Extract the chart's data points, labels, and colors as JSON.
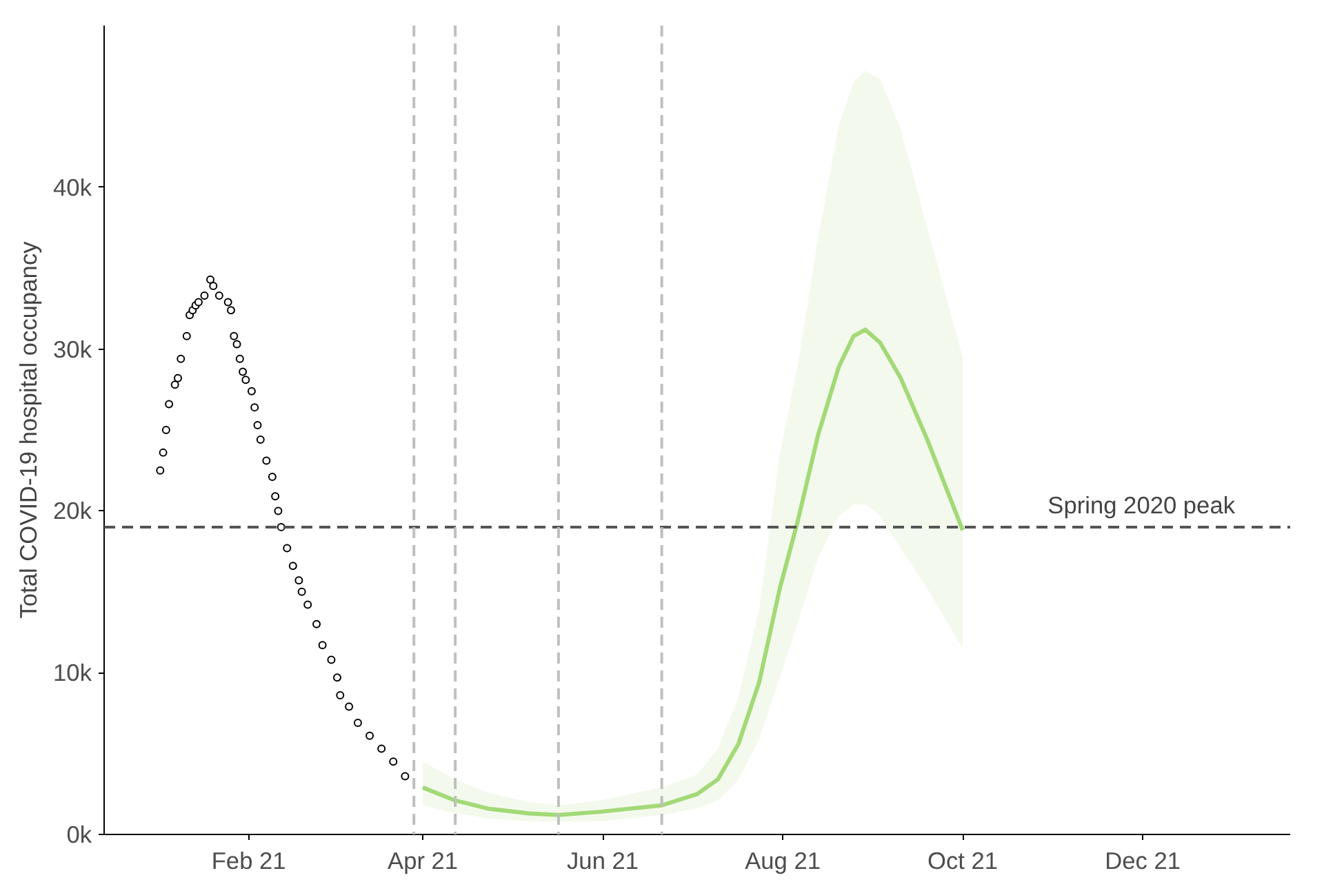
{
  "chart_data": {
    "type": "line",
    "ylabel": "Total COVID-19 hospital occupancy",
    "xlim": [
      "2020-12-14",
      "2022-01-20"
    ],
    "ylim": [
      0,
      50000
    ],
    "xticks": [
      {
        "value": "2021-02-01",
        "label": "Feb 21"
      },
      {
        "value": "2021-04-01",
        "label": "Apr 21"
      },
      {
        "value": "2021-06-01",
        "label": "Jun 21"
      },
      {
        "value": "2021-08-01",
        "label": "Aug 21"
      },
      {
        "value": "2021-10-01",
        "label": "Oct 21"
      },
      {
        "value": "2021-12-01",
        "label": "Dec 21"
      }
    ],
    "yticks": [
      {
        "value": 0,
        "label": "0k"
      },
      {
        "value": 10000,
        "label": "10k"
      },
      {
        "value": 20000,
        "label": "20k"
      },
      {
        "value": 30000,
        "label": "30k"
      },
      {
        "value": 40000,
        "label": "40k"
      }
    ],
    "grid": false,
    "series": [
      {
        "type": "scatter",
        "marker": "circle",
        "color": "#000000",
        "x": [
          "2021-01-02",
          "2021-01-03",
          "2021-01-04",
          "2021-01-05",
          "2021-01-07",
          "2021-01-08",
          "2021-01-09",
          "2021-01-11",
          "2021-01-12",
          "2021-01-13",
          "2021-01-14",
          "2021-01-15",
          "2021-01-17",
          "2021-01-19",
          "2021-01-20",
          "2021-01-22",
          "2021-01-25",
          "2021-01-26",
          "2021-01-27",
          "2021-01-28",
          "2021-01-29",
          "2021-01-30",
          "2021-01-31",
          "2021-02-02",
          "2021-02-03",
          "2021-02-04",
          "2021-02-05",
          "2021-02-07",
          "2021-02-09",
          "2021-02-10",
          "2021-02-11",
          "2021-02-12",
          "2021-02-14",
          "2021-02-16",
          "2021-02-18",
          "2021-02-19",
          "2021-02-21",
          "2021-02-24",
          "2021-02-26",
          "2021-03-01",
          "2021-03-03",
          "2021-03-04",
          "2021-03-07",
          "2021-03-10",
          "2021-03-14",
          "2021-03-18",
          "2021-03-22",
          "2021-03-26"
        ],
        "values": [
          22500,
          23600,
          25000,
          26600,
          27800,
          28200,
          29400,
          30800,
          32100,
          32400,
          32700,
          32900,
          33300,
          34300,
          33900,
          33300,
          32900,
          32400,
          30800,
          30300,
          29400,
          28600,
          28100,
          27400,
          26400,
          25300,
          24400,
          23100,
          22100,
          20900,
          20000,
          19000,
          17700,
          16600,
          15700,
          15000,
          14200,
          13000,
          11700,
          10800,
          9700,
          8600,
          7900,
          6900,
          6100,
          5300,
          4500,
          3600
        ]
      },
      {
        "color": "#a3d977",
        "x": [
          "2021-04-01",
          "2021-04-12",
          "2021-04-23",
          "2021-05-07",
          "2021-05-17",
          "2021-05-31",
          "2021-06-21",
          "2021-07-03",
          "2021-07-10",
          "2021-07-17",
          "2021-07-24",
          "2021-07-31",
          "2021-08-06",
          "2021-08-13",
          "2021-08-20",
          "2021-08-25",
          "2021-08-29",
          "2021-09-03",
          "2021-09-10",
          "2021-09-19",
          "2021-10-01"
        ],
        "values": [
          2900,
          2100,
          1600,
          1300,
          1200,
          1400,
          1800,
          2500,
          3400,
          5600,
          9400,
          15200,
          19300,
          24700,
          28900,
          30800,
          31200,
          30400,
          28200,
          24400,
          18800
        ],
        "lower": [
          1800,
          1300,
          1000,
          800,
          800,
          800,
          1200,
          1600,
          2100,
          3400,
          5900,
          9700,
          13000,
          17100,
          19700,
          20400,
          20400,
          19700,
          17700,
          15200,
          11500
        ],
        "upper": [
          4500,
          3400,
          2600,
          2000,
          1800,
          2100,
          2900,
          3700,
          5300,
          8500,
          13900,
          23500,
          28900,
          36900,
          43800,
          46500,
          47200,
          46700,
          43600,
          37500,
          29500
        ]
      }
    ],
    "ref_lines": [
      {
        "axis": "y",
        "value": 19000,
        "label": "Spring 2020 peak",
        "color": "#555555",
        "line_style": "dashed"
      },
      {
        "axis": "x",
        "value": "2021-03-29",
        "color": "#bfbfbf",
        "line_style": "dashed"
      },
      {
        "axis": "x",
        "value": "2021-04-12",
        "color": "#bfbfbf",
        "line_style": "dashed"
      },
      {
        "axis": "x",
        "value": "2021-05-17",
        "color": "#bfbfbf",
        "line_style": "dashed"
      },
      {
        "axis": "x",
        "value": "2021-06-21",
        "color": "#bfbfbf",
        "line_style": "dashed"
      }
    ]
  }
}
